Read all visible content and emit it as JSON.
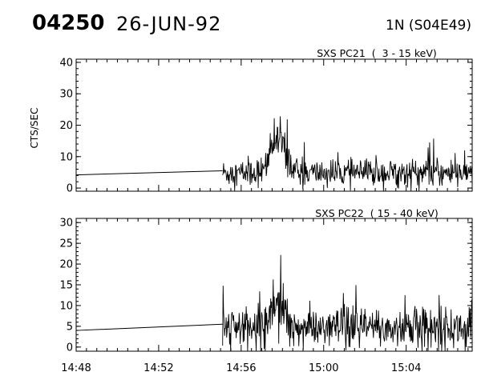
{
  "header": {
    "event_id": "04250",
    "date": "26-JUN-92",
    "location": "1N (S04E49)"
  },
  "chart_data": [
    {
      "type": "line",
      "title": "SXS PC21  (  3 - 15 keV)",
      "ylabel": "CTS/SEC",
      "xlabel": "",
      "x_tick_labels": [
        "14:48",
        "14:52",
        "14:56",
        "15:00",
        "15:04"
      ],
      "x_tick_minutes": [
        0,
        4,
        8,
        12,
        16
      ],
      "xlim_minutes": [
        0,
        19.2
      ],
      "ylim": [
        -1,
        41
      ],
      "y_ticks": [
        0,
        10,
        20,
        30,
        40
      ],
      "series": [
        {
          "label_note": "",
          "data_gap": {
            "from_minute": 0,
            "to_minute": 7.1,
            "start_value": 4.2,
            "end_value": 5.5
          },
          "noisy_segment": {
            "from_minute": 7.1,
            "to_minute": 19.2,
            "baseline": 4.8,
            "noise_sd": 2.2,
            "peak_minute": 9.8,
            "peak_value": 15.5,
            "peak_width_minutes": 0.35,
            "max_value": 29,
            "spike_chance": 0.05,
            "spike_height": 10
          }
        }
      ]
    },
    {
      "type": "line",
      "title": "SXS PC22  ( 15 - 40 keV)",
      "ylabel": "",
      "xlabel": "",
      "x_tick_labels": [
        "14:48",
        "14:52",
        "14:56",
        "15:00",
        "15:04"
      ],
      "x_tick_minutes": [
        0,
        4,
        8,
        12,
        16
      ],
      "xlim_minutes": [
        0,
        19.2
      ],
      "ylim": [
        -1,
        31
      ],
      "y_ticks": [
        0,
        5,
        10,
        15,
        20,
        25,
        30
      ],
      "series": [
        {
          "label_note": "",
          "data_gap": {
            "from_minute": 0,
            "to_minute": 7.1,
            "start_value": 4,
            "end_value": 5.5
          },
          "noisy_segment": {
            "from_minute": 7.1,
            "to_minute": 19.2,
            "baseline": 4.5,
            "noise_sd": 2.5,
            "peak_minute": 9.8,
            "peak_value": 11.5,
            "peak_width_minutes": 0.35,
            "max_value": 23,
            "spike_chance": 0.05,
            "spike_height": 8
          }
        }
      ]
    }
  ]
}
